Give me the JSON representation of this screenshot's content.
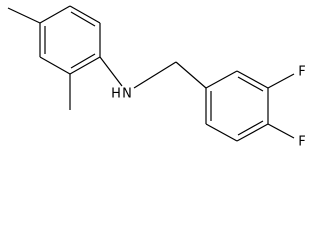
{
  "atoms": [
    {
      "label": "H"
    },
    {
      "label": "N"
    },
    {
      "label": "F"
    },
    {
      "label": "F"
    }
  ]
}
